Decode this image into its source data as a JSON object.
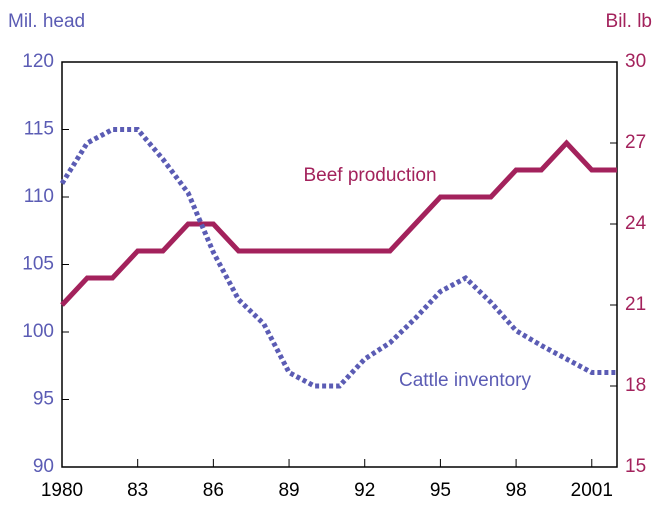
{
  "chart_data": {
    "type": "line",
    "y_label": "Mil. head",
    "y2_label": "Bil. lb",
    "x": [
      1980,
      1981,
      1982,
      1983,
      1984,
      1985,
      1986,
      1987,
      1988,
      1989,
      1990,
      1991,
      1992,
      1993,
      1994,
      1995,
      1996,
      1997,
      1998,
      1999,
      2000,
      2001,
      2002
    ],
    "xlim": [
      1980,
      2002
    ],
    "xticks": [
      1980,
      {
        "value": 1983,
        "label": "83"
      },
      {
        "value": 1986,
        "label": "86"
      },
      {
        "value": 1989,
        "label": "89"
      },
      {
        "value": 1992,
        "label": "92"
      },
      {
        "value": 1995,
        "label": "95"
      },
      {
        "value": 1998,
        "label": "98"
      },
      2001
    ],
    "ylim": [
      90,
      120
    ],
    "yticks": [
      90,
      95,
      100,
      105,
      110,
      115,
      120
    ],
    "y2lim": [
      15,
      30
    ],
    "y2ticks": [
      15,
      18,
      21,
      24,
      27,
      30
    ],
    "series": [
      {
        "name": "Beef production",
        "color": "#a3225c",
        "axis": "y2",
        "values": [
          21,
          22,
          22,
          23,
          23,
          24,
          24,
          23,
          23,
          23,
          23,
          23,
          23,
          23,
          24,
          25,
          25,
          25,
          26,
          26,
          27,
          26,
          26
        ]
      },
      {
        "name": "Cattle inventory",
        "color": "#5b5cb4",
        "dashed": true,
        "values": [
          111,
          114,
          115,
          115,
          112.8,
          110.3,
          105.9,
          102.4,
          100.6,
          97,
          96,
          96,
          98,
          99.2,
          101,
          103,
          104,
          102.2,
          100.1,
          99,
          98,
          97,
          97
        ]
      }
    ]
  }
}
